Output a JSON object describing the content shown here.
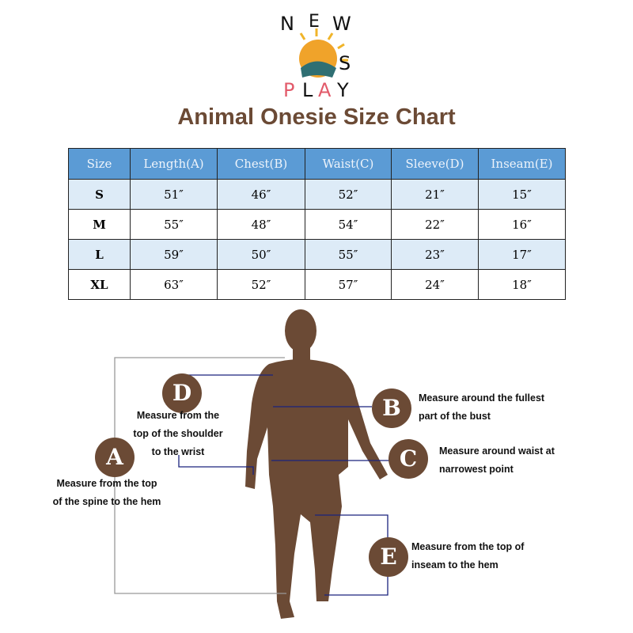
{
  "logo": {
    "line1": "NEW",
    "line2": "COS",
    "line3": "PLAY"
  },
  "title": "Animal Onesie Size Chart",
  "table": {
    "headers": [
      "Size",
      "Length(A)",
      "Chest(B)",
      "Waist(C)",
      "Sleeve(D)",
      "Inseam(E)"
    ],
    "rows": [
      [
        "S",
        "51″",
        "46″",
        "52″",
        "21″",
        "15″"
      ],
      [
        "M",
        "55″",
        "48″",
        "54″",
        "22″",
        "16″"
      ],
      [
        "L",
        "59″",
        "50″",
        "55″",
        "23″",
        "17″"
      ],
      [
        "XL",
        "63″",
        "52″",
        "57″",
        "24″",
        "18″"
      ]
    ]
  },
  "markers": {
    "A": {
      "letter": "A",
      "note": [
        "Measure from the top",
        "of the spine to the hem"
      ]
    },
    "B": {
      "letter": "B",
      "note": [
        "Measure around the fullest",
        "part of the bust"
      ]
    },
    "C": {
      "letter": "C",
      "note": [
        "Measure around waist at",
        "narrowest point"
      ]
    },
    "D": {
      "letter": "D",
      "note": [
        "Measure from the",
        "top of the shoulder",
        "to the wrist"
      ]
    },
    "E": {
      "letter": "E",
      "note": [
        "Measure from the top of",
        "inseam to the hem"
      ]
    }
  },
  "colors": {
    "brown": "#6b4a35",
    "header_blue": "#5b9bd5",
    "row_blue": "#ddebf7",
    "line_blue": "#1a237e"
  }
}
